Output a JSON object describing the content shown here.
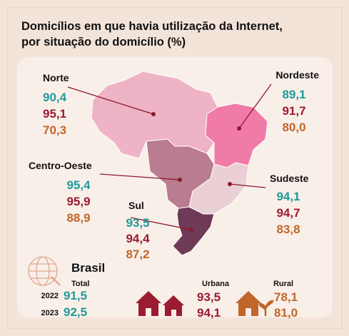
{
  "title": [
    "Domicílios em que havia utilização da Internet,",
    "por situação do domicílio (%)"
  ],
  "regions": [
    {
      "name": "Norte",
      "values": [
        "90,4",
        "95,1",
        "70,3"
      ]
    },
    {
      "name": "Nordeste",
      "values": [
        "89,1",
        "91,7",
        "80,0"
      ]
    },
    {
      "name": "Centro-Oeste",
      "values": [
        "95,4",
        "95,9",
        "88,9"
      ]
    },
    {
      "name": "Sudeste",
      "values": [
        "94,1",
        "94,7",
        "83,8"
      ]
    },
    {
      "name": "Sul",
      "values": [
        "93,5",
        "94,4",
        "87,2"
      ]
    }
  ],
  "brasil": {
    "label": "Brasil",
    "years": [
      "2022",
      "2023"
    ],
    "total": {
      "label": "Total",
      "values": [
        "91,5",
        "92,5"
      ]
    },
    "urbana": {
      "label": "Urbana",
      "values": [
        "93,5",
        "94,1"
      ]
    },
    "rural": {
      "label": "Rural",
      "values": [
        "78,1",
        "81,0"
      ]
    }
  }
}
